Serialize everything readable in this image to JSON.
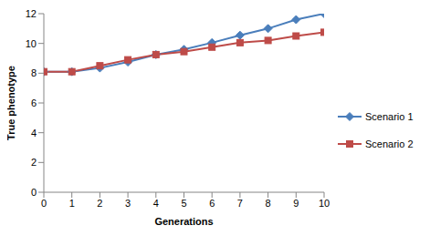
{
  "chart_data": {
    "type": "line",
    "x_label": "Generations",
    "y_label": "True phenotype",
    "x": [
      0,
      1,
      2,
      3,
      4,
      5,
      6,
      7,
      8,
      9,
      10
    ],
    "xlim": [
      0,
      10
    ],
    "xticks": [
      0,
      1,
      2,
      3,
      4,
      5,
      6,
      7,
      8,
      9,
      10
    ],
    "ylim": [
      0,
      12
    ],
    "yticks": [
      0,
      2,
      4,
      6,
      8,
      10,
      12
    ],
    "grid": false,
    "legend": "right",
    "series": [
      {
        "name": "Scenario 1",
        "color": "#4a7ebb",
        "marker": "diamond",
        "values": [
          8.1,
          8.1,
          8.35,
          8.75,
          9.25,
          9.6,
          10.05,
          10.55,
          11.0,
          11.6,
          12.0
        ]
      },
      {
        "name": "Scenario 2",
        "color": "#be4b48",
        "marker": "square",
        "values": [
          8.1,
          8.1,
          8.5,
          8.9,
          9.25,
          9.45,
          9.75,
          10.05,
          10.2,
          10.5,
          10.75
        ]
      }
    ]
  }
}
